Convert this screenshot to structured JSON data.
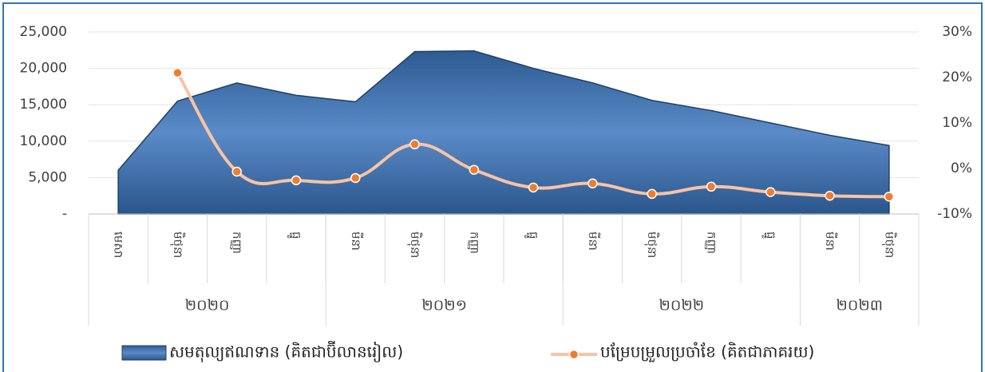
{
  "chart_data": {
    "type": "area-line",
    "categories": [
      "មេសា",
      "មិថុនា",
      "កញ្ញា",
      "ធ្នូ",
      "មីនា",
      "មិថុនា",
      "កញ្ញា",
      "ធ្នូ",
      "មីនា",
      "មិថុនា",
      "កញ្ញា",
      "ធ្នូ",
      "មីនា",
      "មិថុនា"
    ],
    "groups": [
      {
        "label": "២០២០",
        "count": 4
      },
      {
        "label": "២០២១",
        "count": 4
      },
      {
        "label": "២០២២",
        "count": 4
      },
      {
        "label": "២០២៣",
        "count": 2
      }
    ],
    "series": [
      {
        "name": "សមតុល្យឥណទាន (គិតជាប៊ីលានរៀល)",
        "color": "#2f5f97",
        "values": [
          6000,
          15500,
          18000,
          16300,
          15400,
          22300,
          22400,
          20000,
          18000,
          15600,
          14200,
          12500,
          10800,
          9400
        ]
      },
      {
        "name": "បម្រែបម្រួលប្រចាំខែ (គិតជាភាគរយ)",
        "color": "#f7c4a5",
        "axis": "y2",
        "values": [
          null,
          21,
          -0.7,
          -2.6,
          -2.1,
          5.3,
          -0.3,
          -4.2,
          -3.3,
          -5.6,
          -4.0,
          -5.2,
          -6.0,
          -6.2
        ]
      }
    ],
    "ylim": [
      0,
      25000
    ],
    "yticks": [
      {
        "value": 0,
        "label": "-"
      },
      {
        "value": 5000,
        "label": "5,000"
      },
      {
        "value": 10000,
        "label": "10,000"
      },
      {
        "value": 15000,
        "label": "15,000"
      },
      {
        "value": 20000,
        "label": "20,000"
      },
      {
        "value": 25000,
        "label": "25,000"
      }
    ],
    "y2lim": [
      -10,
      30
    ],
    "y2ticks": [
      {
        "value": -10,
        "label": "-10%"
      },
      {
        "value": 0,
        "label": "0%"
      },
      {
        "value": 10,
        "label": "10%"
      },
      {
        "value": 20,
        "label": "20%"
      },
      {
        "value": 30,
        "label": "30%"
      }
    ],
    "grid": true,
    "legend": "bottom"
  }
}
